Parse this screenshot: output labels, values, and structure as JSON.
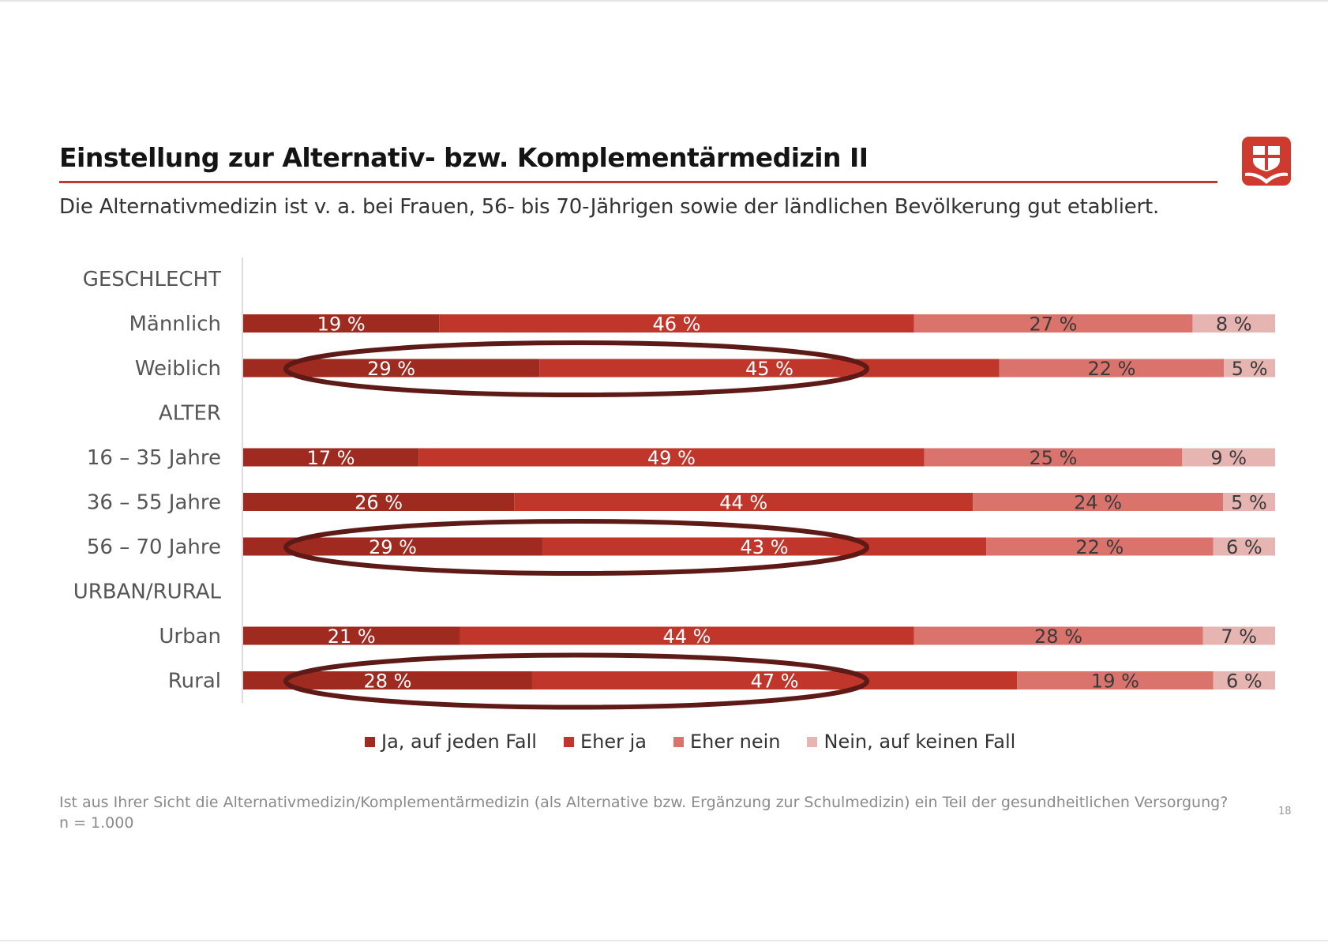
{
  "header": {
    "title": "Einstellung zur Alternativ- bzw. Komplementärmedizin II",
    "subtitle": "Die Alternativmedizin ist v. a. bei Frauen, 56- bis 70-Jährigen sowie der ländlichen Bevölkerung gut etabliert."
  },
  "logo": {
    "icon": "shield-leaf-icon",
    "color": "#cf3a2f"
  },
  "footer": {
    "question": "Ist aus Ihrer Sicht die Alternativmedizin/Komplementärmedizin (als Alternative bzw. Ergänzung zur Schulmedizin) ein Teil der gesundheitlichen Versorgung?",
    "sample": "n = 1.000",
    "page_number": "18"
  },
  "chart_data": {
    "type": "bar",
    "orientation": "horizontal",
    "stacked": true,
    "unit": "%",
    "xlim": [
      0,
      100
    ],
    "grid": false,
    "legend_position": "bottom",
    "groups": [
      {
        "label": "GESCHLECHT",
        "rows": [
          "Männlich",
          "Weiblich"
        ]
      },
      {
        "label": "ALTER",
        "rows": [
          "16 – 35 Jahre",
          "36 – 55 Jahre",
          "56 – 70 Jahre"
        ]
      },
      {
        "label": "URBAN/RURAL",
        "rows": [
          "Urban",
          "Rural"
        ]
      }
    ],
    "categories": [
      "Männlich",
      "Weiblich",
      "16 – 35 Jahre",
      "36 – 55 Jahre",
      "56 – 70 Jahre",
      "Urban",
      "Rural"
    ],
    "series": [
      {
        "name": "Ja, auf jeden Fall",
        "color": "#9e2a20",
        "values": [
          19,
          29,
          17,
          26,
          29,
          21,
          28
        ]
      },
      {
        "name": "Eher ja",
        "color": "#c0362b",
        "values": [
          46,
          45,
          49,
          44,
          43,
          44,
          47
        ]
      },
      {
        "name": "Eher nein",
        "color": "#d9736c",
        "values": [
          27,
          22,
          25,
          24,
          22,
          28,
          19
        ]
      },
      {
        "name": "Nein, auf keinen Fall",
        "color": "#e6b4b1",
        "values": [
          8,
          5,
          9,
          5,
          6,
          7,
          6
        ]
      }
    ],
    "highlighted_rows": [
      "Weiblich",
      "56 – 70 Jahre",
      "Rural"
    ],
    "highlight_color": "#5e1a16"
  }
}
